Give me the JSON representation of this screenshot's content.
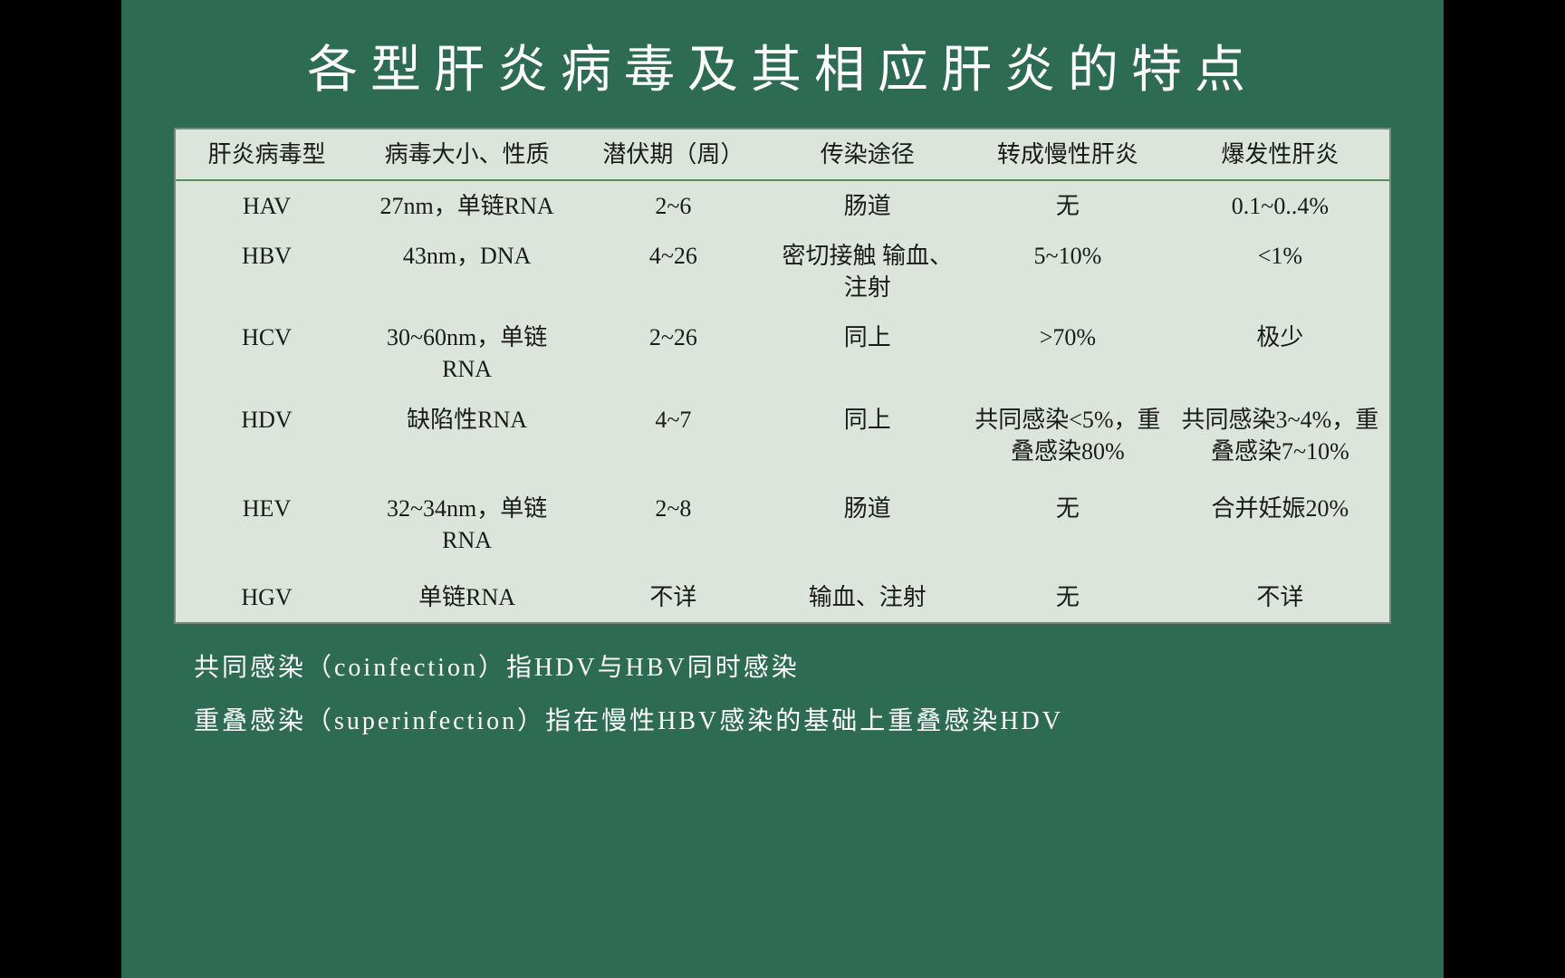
{
  "slide": {
    "title": "各型肝炎病毒及其相应肝炎的特点",
    "background_color": "#2d6b53",
    "page_background": "#000000",
    "title_color": "#ffffff",
    "title_fontsize": 56,
    "title_letter_spacing": 14
  },
  "table": {
    "background_color": "#dce5dc",
    "border_color": "#7a8a7a",
    "header_underline_color": "#5a8a5a",
    "cell_fontsize": 26,
    "cell_color": "#1a1a1a",
    "column_widths_pct": [
      15,
      18,
      16,
      16,
      17,
      18
    ],
    "columns": [
      "肝炎病毒型",
      "病毒大小、性质",
      "潜伏期（周）",
      "传染途径",
      "转成慢性肝炎",
      "爆发性肝炎"
    ],
    "rows": [
      [
        "HAV",
        "27nm，单链RNA",
        "2~6",
        "肠道",
        "无",
        "0.1~0..4%"
      ],
      [
        "HBV",
        "43nm，DNA",
        "4~26",
        "密切接触 输血、注射",
        "5~10%",
        "<1%"
      ],
      [
        "HCV",
        "30~60nm，单链RNA",
        "2~26",
        "同上",
        ">70%",
        "极少"
      ],
      [
        "HDV",
        "缺陷性RNA",
        "4~7",
        "同上",
        "共同感染<5%，重叠感染80%",
        "共同感染3~4%，重叠感染7~10%"
      ],
      [
        "HEV",
        "32~34nm，单链RNA",
        "2~8",
        "肠道",
        "无",
        "合并妊娠20%"
      ],
      [
        "HGV",
        "单链RNA",
        "不详",
        "输血、注射",
        "无",
        "不详"
      ]
    ]
  },
  "notes": {
    "color": "#ffffff",
    "fontsize": 28,
    "lines": [
      "共同感染（coinfection）指HDV与HBV同时感染",
      "重叠感染（superinfection）指在慢性HBV感染的基础上重叠感染HDV"
    ]
  }
}
